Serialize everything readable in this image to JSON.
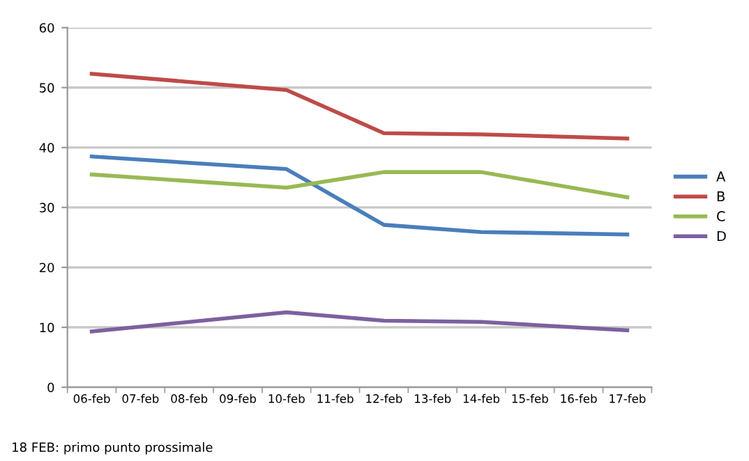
{
  "chart_data": {
    "type": "line",
    "categories": [
      "06-feb",
      "07-feb",
      "08-feb",
      "09-feb",
      "10-feb",
      "11-feb",
      "12-feb",
      "13-feb",
      "14-feb",
      "15-feb",
      "16-feb",
      "17-feb"
    ],
    "series": [
      {
        "name": "A",
        "color": "#4a7ebb",
        "values": [
          38.5,
          null,
          null,
          null,
          36.4,
          null,
          27.1,
          null,
          25.9,
          null,
          null,
          25.5
        ]
      },
      {
        "name": "B",
        "color": "#be4b48",
        "values": [
          52.3,
          null,
          null,
          null,
          49.6,
          null,
          42.4,
          null,
          42.2,
          null,
          null,
          41.5
        ]
      },
      {
        "name": "C",
        "color": "#98b954",
        "values": [
          35.5,
          null,
          null,
          null,
          33.3,
          null,
          35.9,
          null,
          35.9,
          null,
          null,
          31.7
        ]
      },
      {
        "name": "D",
        "color": "#7d60a0",
        "values": [
          9.3,
          null,
          null,
          null,
          12.5,
          null,
          11.1,
          null,
          10.9,
          null,
          null,
          9.5
        ]
      }
    ],
    "ylim": [
      0,
      60
    ],
    "yticks": [
      0,
      10,
      20,
      30,
      40,
      50,
      60
    ],
    "grid": "y",
    "legend": "right",
    "marker": "none",
    "line_style": "solid",
    "annotations": [
      "18 FEB: primo punto prossimale"
    ]
  }
}
